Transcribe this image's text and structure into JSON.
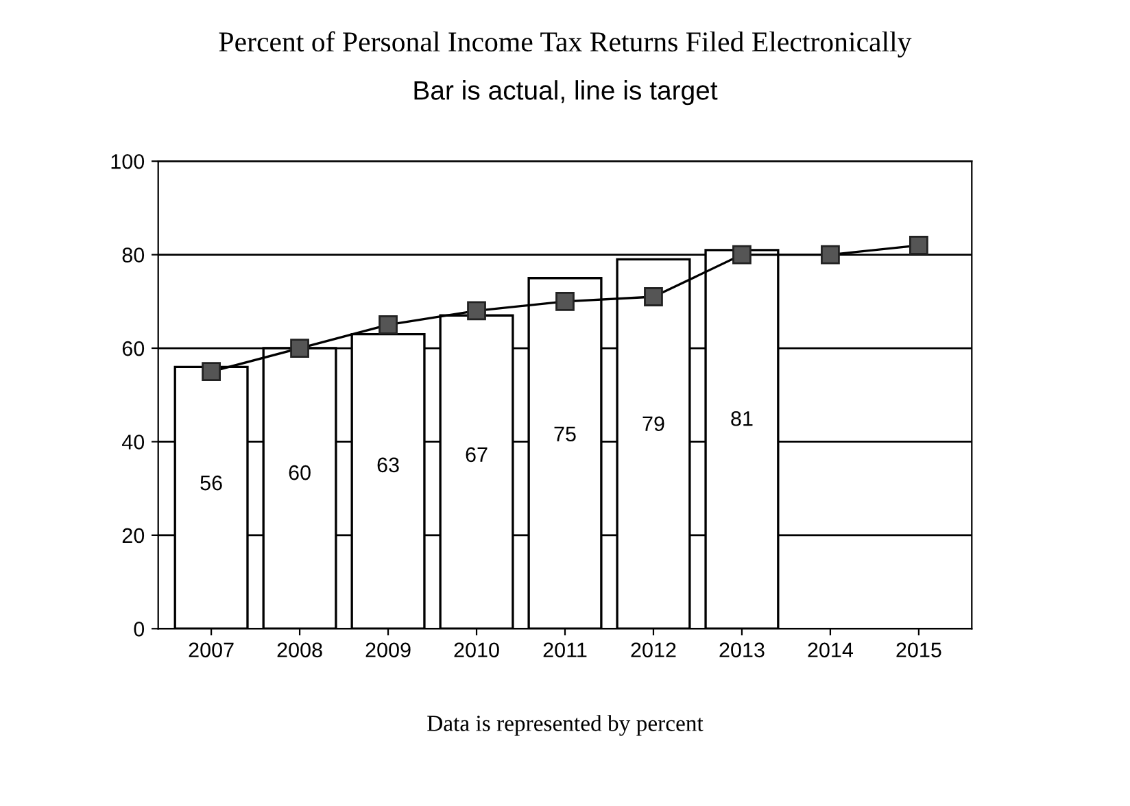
{
  "chart_data": {
    "type": "bar",
    "title": "Percent of Personal Income Tax Returns Filed Electronically",
    "subtitle": "Bar is actual, line is target",
    "categories": [
      "2007",
      "2008",
      "2009",
      "2010",
      "2011",
      "2012",
      "2013",
      "2014",
      "2015"
    ],
    "series": [
      {
        "color": "#ffffff",
        "values": [
          56,
          60,
          63,
          67,
          75,
          79,
          81,
          null,
          null
        ],
        "value_labels": [
          "56",
          "60",
          "63",
          "67",
          "75",
          "79",
          "81",
          null,
          null
        ]
      },
      {
        "type": "line",
        "color": "#000000",
        "marker": "square",
        "line_style": "solid",
        "values": [
          55,
          60,
          65,
          68,
          70,
          71,
          80,
          80,
          82
        ]
      }
    ],
    "ylim": [
      0,
      100
    ],
    "yticks": [
      0,
      20,
      40,
      60,
      80,
      100
    ],
    "grid": "y",
    "legend": false,
    "annotations": [
      "Data is represented by percent"
    ]
  }
}
